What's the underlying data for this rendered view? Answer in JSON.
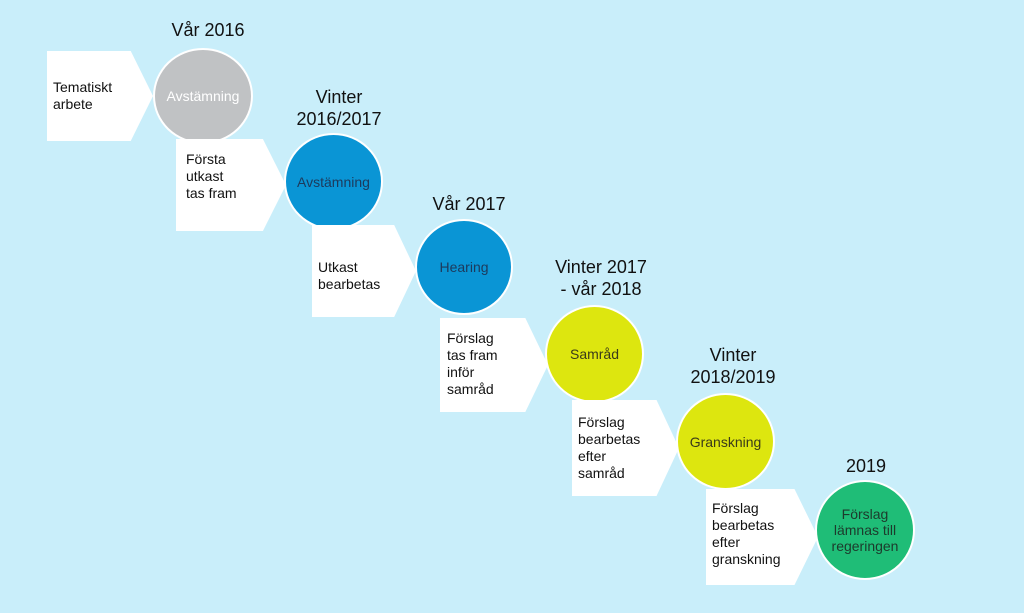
{
  "colors": {
    "background": "#c9eefa",
    "grey": "#c0c2c4",
    "blue": "#0a95d5",
    "lime": "#dde60f",
    "green": "#1fbd77",
    "arrow": "#ffffff"
  },
  "stages": [
    {
      "period": "Vår 2016",
      "arrow_text": "Tematiskt\narbete",
      "circle_label": "Avstämning",
      "color": "grey",
      "label_color": "#ffffff"
    },
    {
      "period": "Vinter\n2016/2017",
      "arrow_text": "Första\nutkast\ntas fram",
      "circle_label": "Avstämning",
      "color": "blue",
      "label_color": "#1d3a5c"
    },
    {
      "period": "Vår 2017",
      "arrow_text": "Utkast\nbearbetas",
      "circle_label": "Hearing",
      "color": "blue",
      "label_color": "#1d3a5c"
    },
    {
      "period": "Vinter 2017\n- vår 2018",
      "arrow_text": "Förslag\ntas fram\ninför\nsamråd",
      "circle_label": "Samråd",
      "color": "lime",
      "label_color": "#3a3a1a"
    },
    {
      "period": "Vinter\n2018/2019",
      "arrow_text": "Förslag\nbearbetas\nefter\nsamråd",
      "circle_label": "Granskning",
      "color": "lime",
      "label_color": "#3a3a1a"
    },
    {
      "period": "2019",
      "arrow_text": "Förslag\nbearbetas\nefter\ngranskning",
      "circle_label": "Förslag\nlämnas till\nregeringen",
      "color": "green",
      "label_color": "#1d3a2c"
    }
  ]
}
